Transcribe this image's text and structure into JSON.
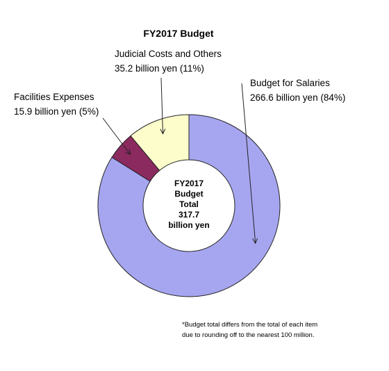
{
  "chart_data": {
    "type": "pie",
    "title": "FY2017 Budget",
    "unit": "billion yen",
    "center_label": [
      "FY2017",
      "Budget",
      "Total",
      "317.7",
      "billion yen"
    ],
    "total": 317.7,
    "slices": [
      {
        "label": "Budget for Salaries",
        "value": 266.6,
        "value_text": "266.6 billion yen (84%)",
        "color": "#a6a6f0"
      },
      {
        "label": "Facilities Expenses",
        "value": 15.9,
        "value_text": "15.9 billion yen (5%)",
        "color": "#8b2a5f"
      },
      {
        "label": "Judicial Costs and Others",
        "value": 35.2,
        "value_text": "35.2 billion yen (11%)",
        "color": "#fdfdcc"
      }
    ],
    "footnote": [
      "*Budget total differs from the total of each item",
      "due to rounding off to the nearest 100 million."
    ]
  }
}
